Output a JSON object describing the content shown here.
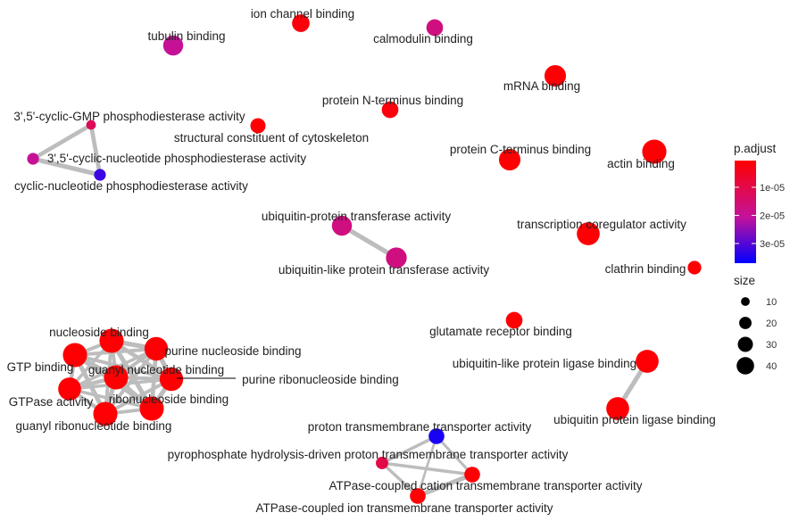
{
  "chart_data": {
    "type": "network",
    "legend": {
      "color_title": "p.adjust",
      "color_ticks": [
        "1e-05",
        "2e-05",
        "3e-05"
      ],
      "color_tick_values": [
        1e-05,
        2e-05,
        3e-05
      ],
      "color_range": [
        5e-07,
        3.7e-05
      ],
      "color_low": "#ff0000",
      "color_high": "#0000ff",
      "size_title": "size",
      "size_ticks": [
        "10",
        "20",
        "30",
        "40"
      ],
      "size_values": [
        10,
        20,
        30,
        40
      ],
      "placement": "right"
    },
    "nodes": [
      {
        "id": "ion channel binding",
        "p_adjust": 2e-06,
        "size": 20
      },
      {
        "id": "calmodulin binding",
        "p_adjust": 1.7e-05,
        "size": 18
      },
      {
        "id": "tubulin binding",
        "p_adjust": 2e-05,
        "size": 26
      },
      {
        "id": "mRNA binding",
        "p_adjust": 1e-06,
        "size": 30
      },
      {
        "id": "protein N-terminus binding",
        "p_adjust": 2e-06,
        "size": 18
      },
      {
        "id": "3',5'-cyclic-GMP phosphodiesterase activity",
        "p_adjust": 1.2e-05,
        "size": 6
      },
      {
        "id": "structural constituent of cytoskeleton",
        "p_adjust": 1e-06,
        "size": 15
      },
      {
        "id": "3',5'-cyclic-nucleotide phosphodiesterase activity",
        "p_adjust": 2e-05,
        "size": 9
      },
      {
        "id": "cyclic-nucleotide phosphodiesterase activity",
        "p_adjust": 3.2e-05,
        "size": 9
      },
      {
        "id": "protein C-terminus binding",
        "p_adjust": 1e-06,
        "size": 30
      },
      {
        "id": "actin binding",
        "p_adjust": 1e-06,
        "size": 38
      },
      {
        "id": "ubiquitin-protein transferase activity",
        "p_adjust": 1.7e-05,
        "size": 26
      },
      {
        "id": "ubiquitin-like protein transferase activity",
        "p_adjust": 1.7e-05,
        "size": 28
      },
      {
        "id": "transcription coregulator activity",
        "p_adjust": 1e-06,
        "size": 34
      },
      {
        "id": "clathrin binding",
        "p_adjust": 1e-06,
        "size": 12
      },
      {
        "id": "glutamate receptor binding",
        "p_adjust": 1e-06,
        "size": 18
      },
      {
        "id": "nucleoside binding",
        "p_adjust": 1e-06,
        "size": 38
      },
      {
        "id": "purine nucleoside binding",
        "p_adjust": 1e-06,
        "size": 36
      },
      {
        "id": "GTP binding",
        "p_adjust": 1e-06,
        "size": 38
      },
      {
        "id": "guanyl nucleotide binding",
        "p_adjust": 1e-06,
        "size": 38
      },
      {
        "id": "purine ribonucleoside binding",
        "p_adjust": 1e-06,
        "size": 36
      },
      {
        "id": "GTPase activity",
        "p_adjust": 1e-06,
        "size": 34
      },
      {
        "id": "ribonucleoside binding",
        "p_adjust": 1e-06,
        "size": 38
      },
      {
        "id": "guanyl ribonucleotide binding",
        "p_adjust": 1e-06,
        "size": 38
      },
      {
        "id": "ubiquitin-like protein ligase binding",
        "p_adjust": 1e-06,
        "size": 34
      },
      {
        "id": "ubiquitin protein ligase binding",
        "p_adjust": 1e-06,
        "size": 34
      },
      {
        "id": "proton transmembrane transporter activity",
        "p_adjust": 3.5e-05,
        "size": 16
      },
      {
        "id": "pyrophosphate hydrolysis-driven proton transmembrane transporter activity",
        "p_adjust": 1e-05,
        "size": 10
      },
      {
        "id": "ATPase-coupled cation transmembrane transporter activity",
        "p_adjust": 1e-06,
        "size": 16
      },
      {
        "id": "ATPase-coupled ion transmembrane transporter activity",
        "p_adjust": 1e-06,
        "size": 16
      }
    ],
    "edges": [
      {
        "source": "3',5'-cyclic-GMP phosphodiesterase activity",
        "target": "3',5'-cyclic-nucleotide phosphodiesterase activity",
        "weight": 0.8
      },
      {
        "source": "3',5'-cyclic-GMP phosphodiesterase activity",
        "target": "cyclic-nucleotide phosphodiesterase activity",
        "weight": 0.8
      },
      {
        "source": "3',5'-cyclic-nucleotide phosphodiesterase activity",
        "target": "cyclic-nucleotide phosphodiesterase activity",
        "weight": 0.9
      },
      {
        "source": "ubiquitin-protein transferase activity",
        "target": "ubiquitin-like protein transferase activity",
        "weight": 0.9
      },
      {
        "source": "ubiquitin-like protein ligase binding",
        "target": "ubiquitin protein ligase binding",
        "weight": 0.9
      },
      {
        "source": "proton transmembrane transporter activity",
        "target": "pyrophosphate hydrolysis-driven proton transmembrane transporter activity",
        "weight": 0.5
      },
      {
        "source": "proton transmembrane transporter activity",
        "target": "ATPase-coupled cation transmembrane transporter activity",
        "weight": 0.4
      },
      {
        "source": "proton transmembrane transporter activity",
        "target": "ATPase-coupled ion transmembrane transporter activity",
        "weight": 0.3
      },
      {
        "source": "pyrophosphate hydrolysis-driven proton transmembrane transporter activity",
        "target": "ATPase-coupled cation transmembrane transporter activity",
        "weight": 0.5
      },
      {
        "source": "pyrophosphate hydrolysis-driven proton transmembrane transporter activity",
        "target": "ATPase-coupled ion transmembrane transporter activity",
        "weight": 0.5
      },
      {
        "source": "ATPase-coupled cation transmembrane transporter activity",
        "target": "ATPase-coupled ion transmembrane transporter activity",
        "weight": 0.9
      },
      {
        "source": "nucleoside binding",
        "target": "purine nucleoside binding",
        "weight": 0.9
      },
      {
        "source": "nucleoside binding",
        "target": "GTP binding",
        "weight": 0.6
      },
      {
        "source": "nucleoside binding",
        "target": "guanyl nucleotide binding",
        "weight": 0.6
      },
      {
        "source": "nucleoside binding",
        "target": "purine ribonucleoside binding",
        "weight": 0.8
      },
      {
        "source": "nucleoside binding",
        "target": "GTPase activity",
        "weight": 0.5
      },
      {
        "source": "nucleoside binding",
        "target": "ribonucleoside binding",
        "weight": 0.9
      },
      {
        "source": "nucleoside binding",
        "target": "guanyl ribonucleotide binding",
        "weight": 0.6
      },
      {
        "source": "purine nucleoside binding",
        "target": "GTP binding",
        "weight": 0.6
      },
      {
        "source": "purine nucleoside binding",
        "target": "guanyl nucleotide binding",
        "weight": 0.6
      },
      {
        "source": "purine nucleoside binding",
        "target": "purine ribonucleoside binding",
        "weight": 0.9
      },
      {
        "source": "purine nucleoside binding",
        "target": "GTPase activity",
        "weight": 0.5
      },
      {
        "source": "purine nucleoside binding",
        "target": "ribonucleoside binding",
        "weight": 0.8
      },
      {
        "source": "purine nucleoside binding",
        "target": "guanyl ribonucleotide binding",
        "weight": 0.6
      },
      {
        "source": "GTP binding",
        "target": "guanyl nucleotide binding",
        "weight": 0.9
      },
      {
        "source": "GTP binding",
        "target": "purine ribonucleoside binding",
        "weight": 0.6
      },
      {
        "source": "GTP binding",
        "target": "GTPase activity",
        "weight": 0.7
      },
      {
        "source": "GTP binding",
        "target": "ribonucleoside binding",
        "weight": 0.6
      },
      {
        "source": "GTP binding",
        "target": "guanyl ribonucleotide binding",
        "weight": 0.9
      },
      {
        "source": "guanyl nucleotide binding",
        "target": "purine ribonucleoside binding",
        "weight": 0.6
      },
      {
        "source": "guanyl nucleotide binding",
        "target": "GTPase activity",
        "weight": 0.7
      },
      {
        "source": "guanyl nucleotide binding",
        "target": "ribonucleoside binding",
        "weight": 0.6
      },
      {
        "source": "guanyl nucleotide binding",
        "target": "guanyl ribonucleotide binding",
        "weight": 0.9
      },
      {
        "source": "purine ribonucleoside binding",
        "target": "GTPase activity",
        "weight": 0.5
      },
      {
        "source": "purine ribonucleoside binding",
        "target": "ribonucleoside binding",
        "weight": 0.9
      },
      {
        "source": "purine ribonucleoside binding",
        "target": "guanyl ribonucleotide binding",
        "weight": 0.6
      },
      {
        "source": "GTPase activity",
        "target": "ribonucleoside binding",
        "weight": 0.5
      },
      {
        "source": "GTPase activity",
        "target": "guanyl ribonucleotide binding",
        "weight": 0.7
      },
      {
        "source": "ribonucleoside binding",
        "target": "guanyl ribonucleotide binding",
        "weight": 0.6
      }
    ]
  }
}
